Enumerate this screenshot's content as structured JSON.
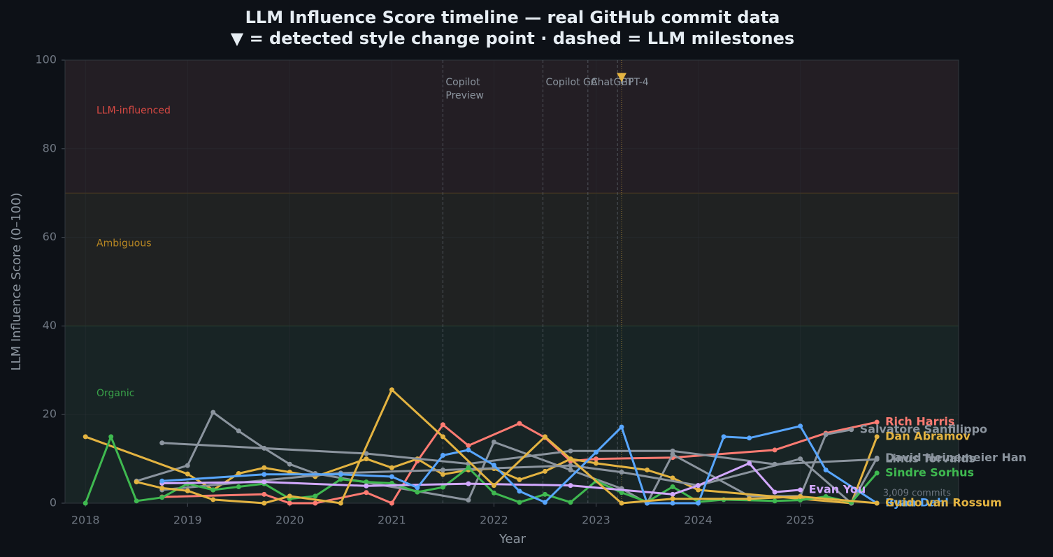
{
  "chart_data": {
    "type": "line",
    "title": "LLM Influence Score timeline — real GitHub commit data",
    "subtitle": "▼ = detected style change point  ·  dashed = LLM milestones",
    "x_label": "Year",
    "y_label": "LLM Influence Score (0–100)",
    "xlim": [
      2017.8,
      2026.55
    ],
    "xticks": [
      2018,
      2019,
      2020,
      2021,
      2022,
      2023,
      2024,
      2025
    ],
    "ylim": [
      0,
      100
    ],
    "yticks": [
      0,
      20,
      40,
      60,
      80,
      100
    ],
    "grid": true,
    "zones": [
      {
        "label": "Organic",
        "from": 0,
        "to": 40,
        "color": "#3fb950"
      },
      {
        "label": "Ambiguous",
        "from": 40,
        "to": 70,
        "color": "#d29922"
      },
      {
        "label": "LLM-influenced",
        "from": 70,
        "to": 100,
        "color": "#f85149"
      }
    ],
    "milestones": [
      {
        "lines": [
          "Copilot",
          "Preview"
        ],
        "x": 2021.5
      },
      {
        "lines": [
          "Copilot GA"
        ],
        "x": 2022.48
      },
      {
        "lines": [
          "ChatGPT"
        ],
        "x": 2022.92
      },
      {
        "lines": [
          "GPT-4"
        ],
        "x": 2023.21
      }
    ],
    "change_points": [
      {
        "x": 2023.25,
        "y": 96,
        "color": "#e3b341"
      }
    ],
    "note": "3,009 commits",
    "series": [
      {
        "name": "Rich Harris",
        "color": "#ff7b72",
        "x": [
          2018.75,
          2019.75,
          2020,
          2020.25,
          2020.75,
          2021,
          2021.25,
          2021.5,
          2021.75,
          2022.25,
          2022.5,
          2022.75,
          2023,
          2023.75,
          2024.75,
          2025.25,
          2025.75
        ],
        "values": [
          1.4,
          2,
          0,
          0,
          2.4,
          0,
          9.5,
          17.7,
          13,
          18,
          14.8,
          9.5,
          10,
          10.3,
          12,
          15.8,
          18.3
        ]
      },
      {
        "name": "Salvatore Sanfilippo",
        "color": "#8b949e",
        "x": [
          2018.5,
          2019,
          2019.25,
          2019.5,
          2019.75,
          2020,
          2020.25,
          2021.75,
          2022,
          2022.75,
          2023.25,
          2023.5,
          2023.75,
          2024.5,
          2025,
          2025.25,
          2025.5
        ],
        "values": [
          5,
          8.5,
          20.5,
          16.3,
          12.4,
          8.8,
          6.7,
          0.7,
          13.8,
          7.5,
          3.3,
          0,
          11,
          1.6,
          1.6,
          15.5,
          16.6
        ]
      },
      {
        "name": "Dan Abramov",
        "color": "#e3b341",
        "x": [
          2018,
          2019,
          2019.25,
          2019.5,
          2019.75,
          2020,
          2020.25,
          2020.75,
          2021,
          2021.25,
          2021.5,
          2021.75,
          2022,
          2022.25,
          2022.5,
          2022.75,
          2023,
          2023.5,
          2023.75,
          2024,
          2025.5,
          2025.75
        ],
        "values": [
          15,
          6.6,
          3,
          6.7,
          8,
          7,
          6,
          10,
          8,
          10,
          6.5,
          7.5,
          7.8,
          5.3,
          7.2,
          10,
          9,
          7.5,
          5.7,
          3,
          0,
          15
        ]
      },
      {
        "name": "David Heinemeier Han",
        "color": "#8b949e",
        "x": [
          2018.75,
          2020.5,
          2021.5,
          2022.75,
          2023.25,
          2024,
          2025,
          2025.5,
          2025.75
        ],
        "values": [
          3,
          6.8,
          7.5,
          8.5,
          7,
          4,
          10,
          0,
          10.2
        ]
      },
      {
        "name": "Linus Torvalds",
        "color": "#8b949e",
        "x": [
          2018.75,
          2020.75,
          2021.75,
          2022.75,
          2023.75,
          2024.75,
          2025.75
        ],
        "values": [
          13.6,
          11.2,
          8.9,
          11.8,
          11.8,
          8.8,
          9.9
        ]
      },
      {
        "name": "Sindre Sorhus",
        "color": "#3fb950",
        "x": [
          2018,
          2018.25,
          2018.5,
          2018.75,
          2019,
          2019.25,
          2019.5,
          2019.75,
          2020,
          2020.25,
          2020.5,
          2020.75,
          2021,
          2021.25,
          2021.5,
          2021.75,
          2022,
          2022.25,
          2022.5,
          2022.75,
          2023,
          2023.25,
          2023.5,
          2023.75,
          2024,
          2024.25,
          2024.75,
          2025,
          2025.25,
          2025.5,
          2025.75
        ],
        "values": [
          0,
          15,
          0.5,
          1.3,
          4.4,
          3,
          3.7,
          4.4,
          1,
          1.6,
          5.4,
          4.8,
          4.5,
          2.5,
          3.6,
          8,
          2.3,
          0.2,
          2,
          0.2,
          5,
          2.4,
          0.3,
          3.7,
          0.3,
          0.8,
          0.5,
          0.7,
          1.5,
          0.2,
          6.8
        ]
      },
      {
        "name": "Evan You",
        "color": "#d2a8ff",
        "x": [
          2018.75,
          2019.75,
          2020.75,
          2021.75,
          2022.75,
          2023.75,
          2024,
          2024.5,
          2024.75,
          2025
        ],
        "values": [
          4.5,
          4.8,
          3.9,
          4.4,
          4,
          2,
          4,
          9,
          2.5,
          3
        ]
      },
      {
        "name": "Ryan Dahl",
        "color": "#58a6ff",
        "x": [
          2018.75,
          2019.75,
          2020.5,
          2021,
          2021.25,
          2021.5,
          2021.75,
          2022,
          2022.25,
          2022.5,
          2023,
          2023.25,
          2023.5,
          2023.75,
          2024,
          2024.25,
          2024.5,
          2025,
          2025.25,
          2025.75
        ],
        "values": [
          5,
          6.5,
          6.5,
          6,
          3.5,
          10.8,
          12,
          8.6,
          2.7,
          0.2,
          11.5,
          17.2,
          0,
          0,
          0,
          15,
          14.7,
          17.4,
          7.5,
          0
        ]
      },
      {
        "name": "Guido van Rossum",
        "color": "#e3b341",
        "x": [
          2018.5,
          2018.75,
          2019,
          2019.25,
          2019.75,
          2020,
          2020.5,
          2021,
          2021.5,
          2022,
          2022.5,
          2023.25,
          2023.75,
          2024.5,
          2025,
          2025.75
        ],
        "values": [
          4.8,
          3.4,
          2.8,
          0.8,
          0,
          1.6,
          0,
          25.6,
          15,
          4,
          15,
          0,
          1,
          1,
          1.5,
          0
        ]
      }
    ]
  }
}
